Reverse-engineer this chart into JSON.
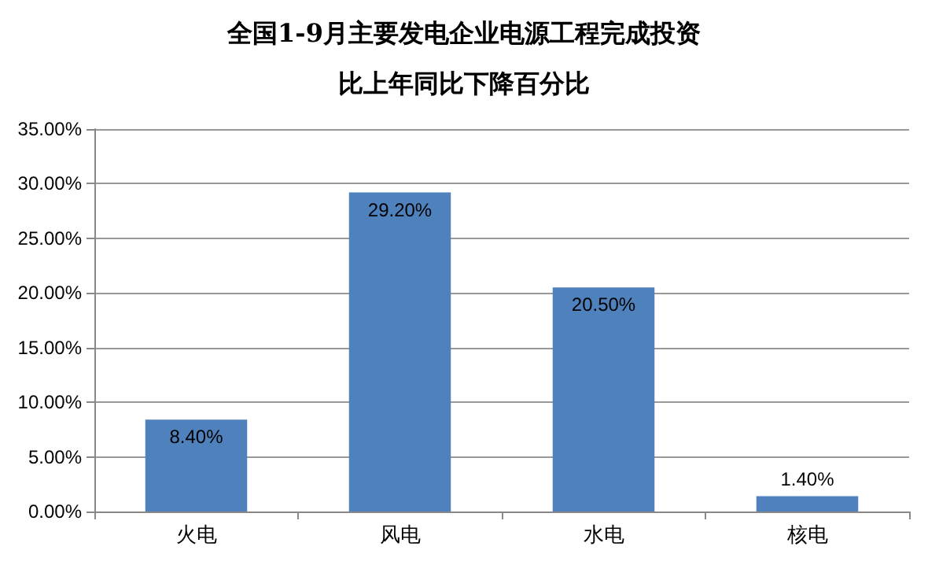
{
  "chart_data": {
    "type": "bar",
    "title": "全国1-9月主要发电企业电源工程完成投资",
    "subtitle": "比上年同比下降百分比",
    "categories": [
      "火电",
      "风电",
      "水电",
      "核电"
    ],
    "values": [
      8.4,
      29.2,
      20.5,
      1.4
    ],
    "value_labels": [
      "8.40%",
      "29.20%",
      "20.50%",
      "1.40%"
    ],
    "color": "#4f81bd",
    "ylim": [
      0,
      35
    ],
    "yticks": [
      {
        "value": 0,
        "label": "0.00%"
      },
      {
        "value": 5,
        "label": "5.00%"
      },
      {
        "value": 10,
        "label": "10.00%"
      },
      {
        "value": 15,
        "label": "15.00%"
      },
      {
        "value": 20,
        "label": "20.00%"
      },
      {
        "value": 25,
        "label": "25.00%"
      },
      {
        "value": 30,
        "label": "30.00%"
      },
      {
        "value": 35,
        "label": "35.00%"
      }
    ],
    "grid": "y"
  }
}
